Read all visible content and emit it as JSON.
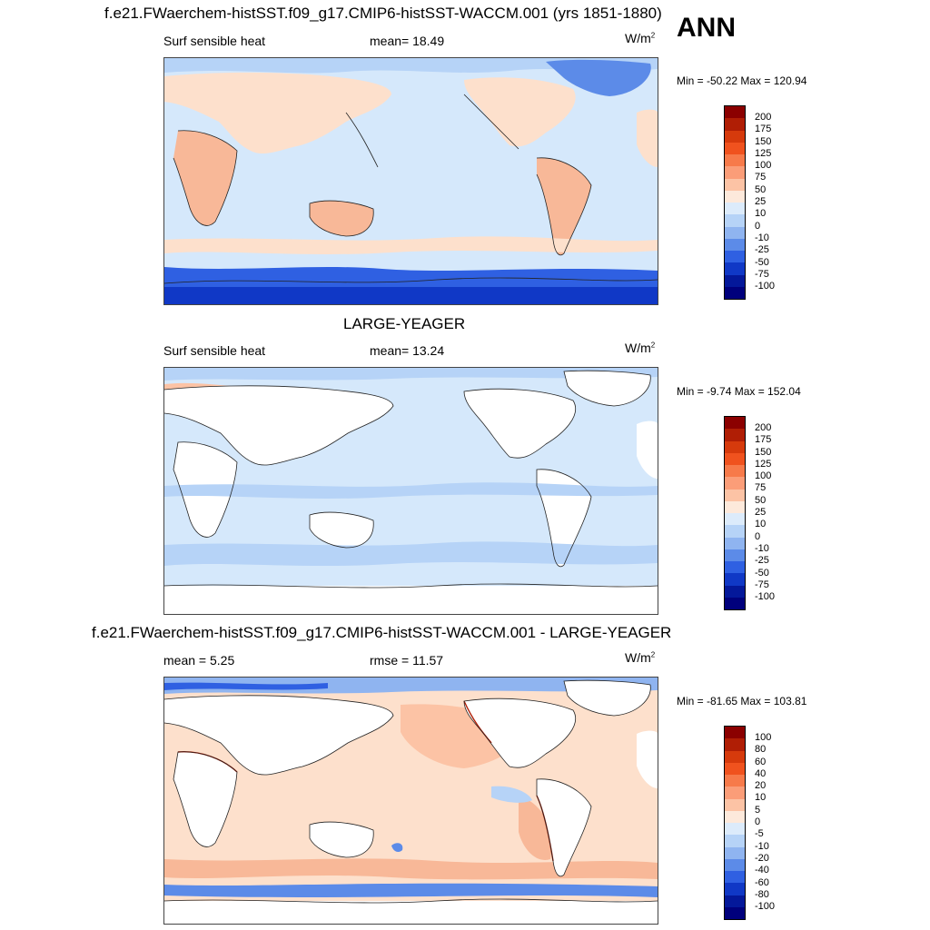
{
  "season": "ANN",
  "variable": "Surf sensible heat",
  "units_base": "W/m",
  "units_exp": "2",
  "panels": [
    {
      "title": "f.e21.FWaerchem-histSST.f09_g17.CMIP6-histSST-WACCM.001 (yrs 1851-1880)",
      "left_label": "Surf sensible heat",
      "center_label": "mean=  18.49",
      "minmax": "Min = -50.22 Max = 120.94",
      "land_filled": true
    },
    {
      "title": "LARGE-YEAGER",
      "left_label": "Surf sensible heat",
      "center_label": "mean=  13.24",
      "minmax": "Min =  -9.74 Max = 152.04",
      "land_filled": false
    },
    {
      "title": "f.e21.FWaerchem-histSST.f09_g17.CMIP6-histSST-WACCM.001 - LARGE-YEAGER",
      "left_label": "mean =   5.25",
      "center_label": "rmse =  11.57",
      "minmax": "Min = -81.65 Max = 103.81",
      "land_filled": false
    }
  ],
  "colorbar_levels": [
    "200",
    "175",
    "150",
    "125",
    "100",
    "75",
    "50",
    "25",
    "10",
    "0",
    "-10",
    "-25",
    "-50",
    "-75",
    "-100"
  ],
  "diff_colorbar_levels": [
    "100",
    "80",
    "60",
    "40",
    "20",
    "10",
    "5",
    "0",
    "-5",
    "-10",
    "-20",
    "-40",
    "-60",
    "-80",
    "-100"
  ],
  "colorbar_colors": [
    "#8b0000",
    "#b01e05",
    "#d63a0c",
    "#f0521e",
    "#f77a4a",
    "#fb9d78",
    "#fcc3a5",
    "#fde9db",
    "#dcebfb",
    "#b6d3f7",
    "#8fb4f0",
    "#5c8be8",
    "#2f60e2",
    "#1038c6",
    "#04189a",
    "#00007c"
  ],
  "colors": {
    "ocean": "#d5e8fb",
    "land_warm": "#fde0cc",
    "land_hot": "#f8b898",
    "cold": "#8fb4f0",
    "very_cold": "#2f60e2",
    "diff_warm": "#fcd2bb"
  }
}
